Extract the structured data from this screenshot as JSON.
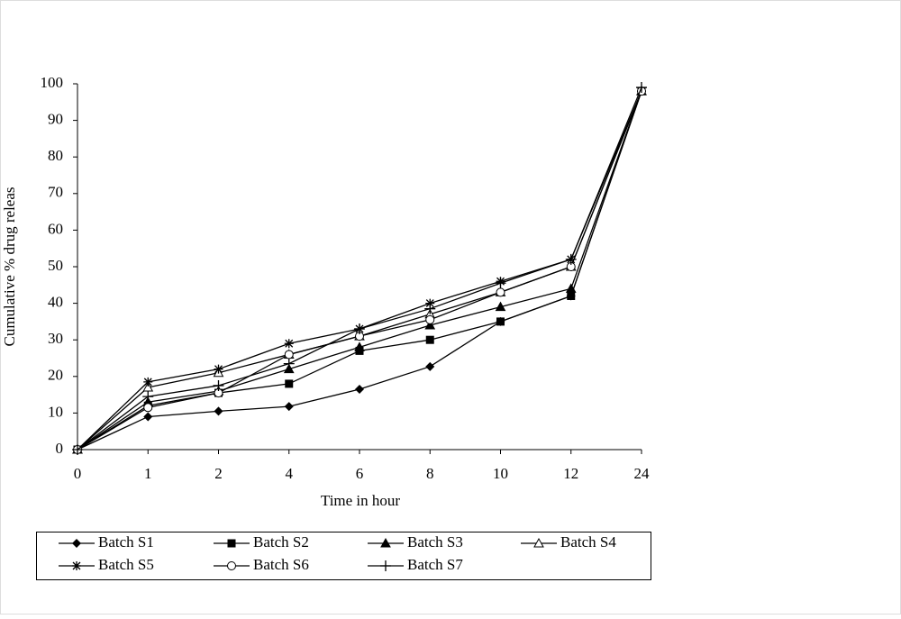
{
  "chart_data": {
    "type": "line",
    "y_label": "Cumulative % drug releas",
    "x_label": "Time in hour",
    "categories": [
      "0",
      "1",
      "2",
      "4",
      "6",
      "8",
      "10",
      "12",
      "24"
    ],
    "ylim": [
      0,
      100
    ],
    "yticks": [
      0,
      10,
      20,
      30,
      40,
      50,
      60,
      70,
      80,
      90,
      100
    ],
    "grid": false,
    "legend": "bottom",
    "series": [
      {
        "name": "Batch S1",
        "color": "#000000",
        "marker": "diamond",
        "values": [
          0,
          9,
          10.5,
          11.8,
          16.5,
          22.7,
          35,
          42,
          98
        ]
      },
      {
        "name": "Batch S2",
        "color": "#000000",
        "marker": "square",
        "values": [
          0,
          12,
          15.5,
          18,
          27,
          30,
          35,
          42,
          98
        ]
      },
      {
        "name": "Batch S3",
        "color": "#000000",
        "marker": "triangle",
        "values": [
          0,
          13,
          16,
          22,
          28,
          34,
          39,
          44,
          98
        ]
      },
      {
        "name": "Batch S4",
        "color": "#000000",
        "marker": "open-triangle",
        "values": [
          0,
          17,
          21,
          26,
          31,
          37,
          43,
          50,
          98
        ]
      },
      {
        "name": "Batch S5",
        "color": "#000000",
        "marker": "asterisk",
        "values": [
          0,
          18.5,
          22,
          29,
          33,
          40,
          46,
          52,
          98
        ]
      },
      {
        "name": "Batch S6",
        "color": "#000000",
        "marker": "circle",
        "values": [
          0,
          11.5,
          15.5,
          26,
          31,
          35.5,
          43,
          50,
          98
        ]
      },
      {
        "name": "Batch S7",
        "color": "#000000",
        "marker": "plus",
        "values": [
          0,
          14.5,
          17.5,
          23.5,
          33,
          38.5,
          45.5,
          52,
          99
        ]
      }
    ]
  }
}
